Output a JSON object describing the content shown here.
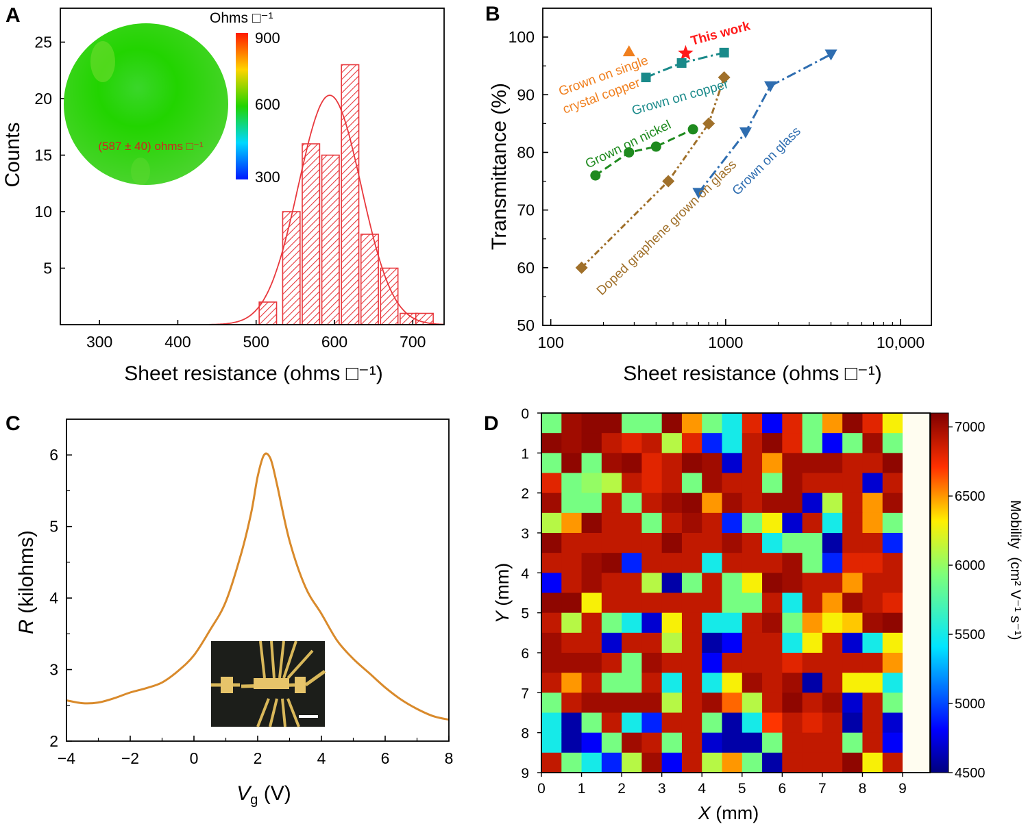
{
  "panels": {
    "a": {
      "letter": "A"
    },
    "b": {
      "letter": "B"
    },
    "c": {
      "letter": "C"
    },
    "d": {
      "letter": "D"
    }
  },
  "chart_data": [
    {
      "panel": "A",
      "type": "bar",
      "xlabel": "Sheet resistance (ohms □⁻¹)",
      "ylabel": "Counts",
      "xlim": [
        250,
        740
      ],
      "ylim": [
        0,
        28
      ],
      "xticks": [
        300,
        400,
        500,
        600,
        700
      ],
      "yticks": [
        5,
        10,
        15,
        20,
        25
      ],
      "bin_width": 30,
      "bins": [
        {
          "center": 515,
          "count": 2
        },
        {
          "center": 545,
          "count": 10
        },
        {
          "center": 570,
          "count": 16
        },
        {
          "center": 595,
          "count": 15
        },
        {
          "center": 620,
          "count": 23
        },
        {
          "center": 645,
          "count": 8
        },
        {
          "center": 670,
          "count": 5
        },
        {
          "center": 695,
          "count": 1
        },
        {
          "center": 715,
          "count": 1
        }
      ],
      "fit": {
        "type": "gaussian",
        "mean": 594,
        "sigma": 40,
        "peak": 20.3
      },
      "color": "#e8383d",
      "inset_map": {
        "label": "(587 ± 40) ohms □⁻¹",
        "colorbar_title": "Ohms □⁻¹",
        "colorbar_ticks": [
          "900",
          "600",
          "300"
        ],
        "colors": [
          "#ff2a00",
          "#ffe600",
          "#22d400",
          "#00d2ff",
          "#0028ff"
        ]
      }
    },
    {
      "panel": "B",
      "type": "scatter",
      "xscale": "log",
      "xlabel": "Sheet resistance (ohms □⁻¹)",
      "ylabel": "Transmittance (%)",
      "xlim": [
        90,
        15000
      ],
      "ylim": [
        50,
        105
      ],
      "xticks": [
        100,
        1000,
        10000
      ],
      "xtick_labels": [
        "100",
        "1000",
        "10,000"
      ],
      "yticks": [
        50,
        60,
        70,
        80,
        90,
        100
      ],
      "series": [
        {
          "name": "Grown on single crystal copper",
          "marker": "triangle-up",
          "color": "#f07f1e",
          "points": [
            [
              280,
              97.5
            ]
          ]
        },
        {
          "name": "This work",
          "marker": "star",
          "color": "#ff1a1a",
          "points": [
            [
              590,
              97.2
            ]
          ]
        },
        {
          "name": "Grown on copper",
          "marker": "square",
          "color": "#1a8a8a",
          "line": "dashdot",
          "points": [
            [
              350,
              93
            ],
            [
              560,
              95.5
            ],
            [
              980,
              97.3
            ]
          ]
        },
        {
          "name": "Grown on nickel",
          "marker": "circle",
          "color": "#1e8a1e",
          "line": "dashed",
          "points": [
            [
              180,
              76
            ],
            [
              280,
              80
            ],
            [
              400,
              81
            ],
            [
              650,
              84
            ]
          ]
        },
        {
          "name": "Doped graphene grown on glass",
          "marker": "diamond",
          "color": "#a0702a",
          "line": "dashdotdot",
          "points": [
            [
              150,
              60
            ],
            [
              470,
              75
            ],
            [
              800,
              85
            ],
            [
              980,
              93
            ]
          ]
        },
        {
          "name": "Grown on glass",
          "marker": "triangle-down",
          "color": "#2e6db0",
          "line": "dashdot",
          "points": [
            [
              700,
              73
            ],
            [
              1300,
              83.5
            ],
            [
              1800,
              91.5
            ],
            [
              4000,
              97
            ]
          ]
        }
      ],
      "labels": {
        "single_crystal_1": "Grown on single",
        "single_crystal_2": "crystal copper",
        "this_work": "This work",
        "copper": "Grown on copper",
        "nickel": "Grown on nickel",
        "doped": "Doped graphene grown on glass",
        "glass": "Grown on glass"
      }
    },
    {
      "panel": "C",
      "type": "line",
      "xlabel_var": "V",
      "xlabel_sub": "g",
      "xlabel_unit": " (V)",
      "ylabel_var": "R",
      "ylabel_unit": " (kilohms)",
      "xlim": [
        -4,
        8
      ],
      "ylim": [
        2,
        6.5
      ],
      "xticks": [
        -4,
        -2,
        0,
        2,
        4,
        6,
        8
      ],
      "xtick_labels": [
        "−4",
        "−2",
        "0",
        "2",
        "4",
        "6",
        "8"
      ],
      "yticks": [
        2,
        3,
        4,
        5,
        6
      ],
      "color": "#d98a2b",
      "x": [
        -4,
        -3.5,
        -3,
        -2.5,
        -2,
        -1.5,
        -1,
        -0.5,
        0,
        0.5,
        1,
        1.5,
        1.8,
        2.0,
        2.2,
        2.4,
        2.6,
        3,
        3.5,
        4,
        4.5,
        5,
        5.5,
        6,
        6.5,
        7,
        7.5,
        8
      ],
      "y": [
        2.57,
        2.53,
        2.54,
        2.6,
        2.68,
        2.74,
        2.82,
        2.98,
        3.2,
        3.55,
        3.95,
        4.65,
        5.2,
        5.7,
        6.0,
        5.95,
        5.6,
        4.8,
        4.15,
        3.78,
        3.4,
        3.15,
        2.95,
        2.75,
        2.58,
        2.45,
        2.35,
        2.3
      ]
    },
    {
      "panel": "D",
      "type": "heatmap",
      "xlabel_var": "X",
      "xlabel_unit": " (mm)",
      "ylabel_var": "Y",
      "ylabel_unit": " (mm)",
      "xlim": [
        0,
        9
      ],
      "ylim": [
        0,
        9
      ],
      "xticks": [
        0,
        1,
        2,
        3,
        4,
        5,
        6,
        7,
        8,
        9
      ],
      "yticks": [
        0,
        1,
        2,
        3,
        4,
        5,
        6,
        7,
        8,
        9
      ],
      "colorbar_label": "Mobility",
      "colorbar_unit": "(cm² V⁻¹ s⁻¹)",
      "colorbar_ticks": [
        4500,
        5000,
        5500,
        6000,
        6500,
        7000
      ],
      "vmin": 4500,
      "vmax": 7100,
      "grid_cols": 18,
      "grid_rows": 18,
      "values": [
        [
          5900,
          7000,
          7050,
          7050,
          5900,
          5900,
          7050,
          6500,
          5900,
          5500,
          6800,
          4800,
          6800,
          5900,
          6500,
          7050,
          6800,
          6300
        ],
        [
          7050,
          7000,
          7050,
          6900,
          6800,
          6900,
          6100,
          6800,
          4900,
          5500,
          6900,
          7050,
          6800,
          5900,
          4800,
          5900,
          7000,
          5900
        ],
        [
          5900,
          7050,
          5900,
          7000,
          7050,
          6800,
          6900,
          7050,
          7000,
          4700,
          6900,
          6500,
          7000,
          7000,
          7000,
          6900,
          6900,
          7050
        ],
        [
          6800,
          5900,
          6000,
          6100,
          6900,
          6800,
          6900,
          5900,
          7000,
          6900,
          6900,
          5900,
          7000,
          6900,
          6900,
          6900,
          4700,
          6900
        ],
        [
          7000,
          5900,
          5900,
          6900,
          5900,
          6900,
          7000,
          7050,
          6500,
          7000,
          6900,
          7000,
          7000,
          4700,
          6100,
          6900,
          6500,
          7000
        ],
        [
          6100,
          6500,
          7050,
          6900,
          6900,
          5900,
          6900,
          7000,
          6900,
          4900,
          5900,
          6300,
          4700,
          6900,
          5500,
          6900,
          6500,
          5900
        ],
        [
          7050,
          6900,
          6900,
          6900,
          6900,
          6900,
          7050,
          6900,
          6900,
          7000,
          6900,
          5500,
          5900,
          5900,
          4600,
          6900,
          6900,
          4900
        ],
        [
          6900,
          6900,
          7000,
          7050,
          4900,
          6900,
          6900,
          6900,
          5500,
          6900,
          6900,
          6900,
          7000,
          5900,
          4900,
          6800,
          6800,
          6900
        ],
        [
          4800,
          6900,
          7000,
          6900,
          6900,
          6100,
          4600,
          5900,
          6900,
          5900,
          6300,
          7050,
          7000,
          6900,
          6900,
          6500,
          6900,
          6900
        ],
        [
          7050,
          7050,
          6300,
          6900,
          6900,
          6900,
          6900,
          6900,
          6900,
          5900,
          5900,
          6900,
          5500,
          6900,
          6500,
          7000,
          6900,
          6800
        ],
        [
          6900,
          6100,
          6900,
          5900,
          5500,
          4700,
          6300,
          6900,
          5500,
          5500,
          6900,
          7000,
          5900,
          6500,
          6300,
          6400,
          7000,
          7050
        ],
        [
          7000,
          6900,
          6900,
          4700,
          6900,
          6900,
          6100,
          6900,
          4600,
          4800,
          6900,
          6900,
          5500,
          6300,
          6900,
          4700,
          5500,
          6300
        ],
        [
          7000,
          7000,
          7000,
          6900,
          5900,
          7000,
          6900,
          6900,
          4800,
          6900,
          6900,
          6900,
          6800,
          6900,
          6900,
          6900,
          6900,
          6500
        ],
        [
          6900,
          6500,
          6900,
          5900,
          5900,
          6900,
          5500,
          6900,
          5500,
          6300,
          7000,
          6900,
          7000,
          4600,
          6900,
          6300,
          6300,
          5500
        ],
        [
          5900,
          6900,
          7000,
          7000,
          7000,
          7000,
          6100,
          6900,
          7000,
          6600,
          6100,
          6900,
          7050,
          6900,
          7000,
          4700,
          6900,
          5900
        ],
        [
          5500,
          4600,
          5900,
          6900,
          5500,
          4900,
          6900,
          6900,
          5900,
          4600,
          5500,
          6700,
          6900,
          6800,
          6900,
          4600,
          6900,
          4700
        ],
        [
          5500,
          4600,
          4800,
          5900,
          7000,
          6900,
          5900,
          6900,
          4700,
          4600,
          4600,
          5900,
          6900,
          6900,
          6900,
          5900,
          6900,
          4800
        ],
        [
          6900,
          5900,
          5500,
          4900,
          6100,
          7000,
          4800,
          6900,
          6100,
          6500,
          5900,
          4600,
          6900,
          6900,
          6900,
          7050,
          6300,
          6900
        ]
      ]
    }
  ]
}
